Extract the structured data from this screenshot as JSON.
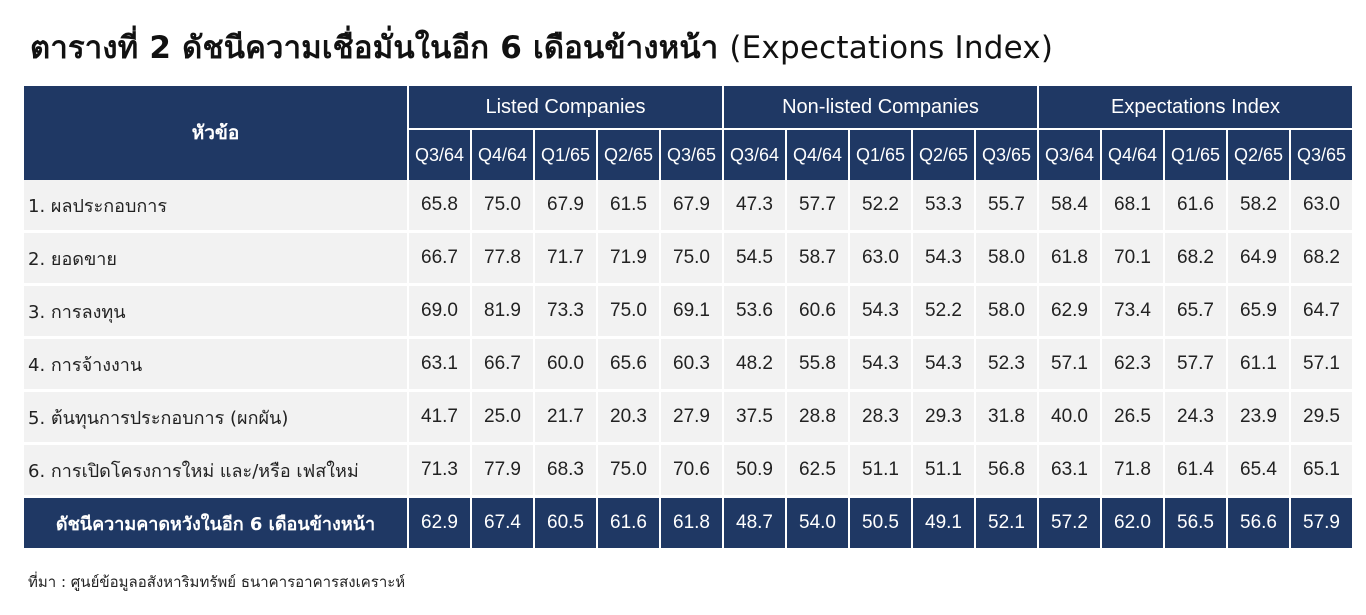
{
  "title": {
    "thai": "ตารางที่ 2 ดัชนีความเชื่อมั่นในอีก 6 เดือนข้างหน้า",
    "english": "(Expectations Index)"
  },
  "table": {
    "topic_header": "หัวข้อ",
    "groups": [
      "Listed Companies",
      "Non-listed Companies",
      "Expectations Index"
    ],
    "quarters": [
      "Q3/64",
      "Q4/64",
      "Q1/65",
      "Q2/65",
      "Q3/65"
    ],
    "rows": [
      {
        "label": "1. ผลประกอบการ",
        "values": [
          "65.8",
          "75.0",
          "67.9",
          "61.5",
          "67.9",
          "47.3",
          "57.7",
          "52.2",
          "53.3",
          "55.7",
          "58.4",
          "68.1",
          "61.6",
          "58.2",
          "63.0"
        ]
      },
      {
        "label": "2. ยอดขาย",
        "values": [
          "66.7",
          "77.8",
          "71.7",
          "71.9",
          "75.0",
          "54.5",
          "58.7",
          "63.0",
          "54.3",
          "58.0",
          "61.8",
          "70.1",
          "68.2",
          "64.9",
          "68.2"
        ]
      },
      {
        "label": "3. การลงทุน",
        "values": [
          "69.0",
          "81.9",
          "73.3",
          "75.0",
          "69.1",
          "53.6",
          "60.6",
          "54.3",
          "52.2",
          "58.0",
          "62.9",
          "73.4",
          "65.7",
          "65.9",
          "64.7"
        ]
      },
      {
        "label": "4. การจ้างงาน",
        "values": [
          "63.1",
          "66.7",
          "60.0",
          "65.6",
          "60.3",
          "48.2",
          "55.8",
          "54.3",
          "54.3",
          "52.3",
          "57.1",
          "62.3",
          "57.7",
          "61.1",
          "57.1"
        ]
      },
      {
        "label": "5. ต้นทุนการประกอบการ (ผกผัน)",
        "values": [
          "41.7",
          "25.0",
          "21.7",
          "20.3",
          "27.9",
          "37.5",
          "28.8",
          "28.3",
          "29.3",
          "31.8",
          "40.0",
          "26.5",
          "24.3",
          "23.9",
          "29.5"
        ]
      },
      {
        "label": "6. การเปิดโครงการใหม่ และ/หรือ เฟสใหม่",
        "values": [
          "71.3",
          "77.9",
          "68.3",
          "75.0",
          "70.6",
          "50.9",
          "62.5",
          "51.1",
          "51.1",
          "56.8",
          "63.1",
          "71.8",
          "61.4",
          "65.4",
          "65.1"
        ]
      }
    ],
    "total": {
      "label": "ดัชนีความคาดหวังในอีก 6 เดือนข้างหน้า",
      "values": [
        "62.9",
        "67.4",
        "60.5",
        "61.6",
        "61.8",
        "48.7",
        "54.0",
        "50.5",
        "49.1",
        "52.1",
        "57.2",
        "62.0",
        "56.5",
        "56.6",
        "57.9"
      ]
    }
  },
  "source": "ที่มา : ศูนย์ข้อมูลอสังหาริมทรัพย์ ธนาคารอาคารสงเคราะห์"
}
